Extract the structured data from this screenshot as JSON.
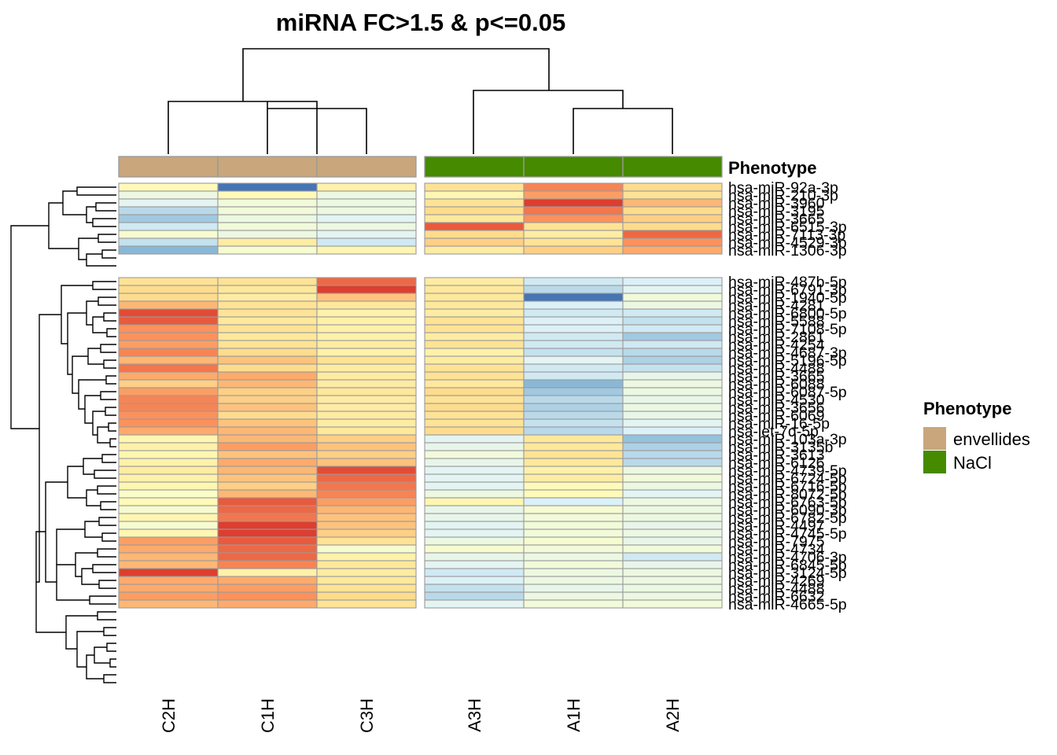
{
  "chart_data": {
    "type": "heatmap",
    "title": "miRNA FC>1.5 & p<=0.05",
    "columns": [
      "C2H",
      "C1H",
      "C3H",
      "A3H",
      "A1H",
      "A2H"
    ],
    "column_phenotype": [
      "envellides",
      "envellides",
      "envellides",
      "NaCl",
      "NaCl",
      "NaCl"
    ],
    "annotation_label": "Phenotype",
    "legend": {
      "title": "Phenotype",
      "items": [
        {
          "label": "envellides",
          "color": "#C9A67C"
        },
        {
          "label": "NaCl",
          "color": "#468A00"
        }
      ]
    },
    "row_labels": [
      "hsa-miR-92a-3p",
      "hsa-miR-210-3p",
      "hsa-miR-3960",
      "hsa-miR-3195",
      "hsa-miR-3665",
      "hsa-miR-6515-3p",
      "hsa-miR-7113-3p",
      "hsa-miR-4529-3p",
      "hsa-miR-1306-3p",
      "hsa-miR-487b-5p",
      "hsa-miR-6791-3p",
      "hsa-miR-1940-5p",
      "hsa-miR-4281",
      "hsa-miR-6800-5p",
      "hsa-miR-5588",
      "hsa-miR-7108-5p",
      "hsa-miR-2861",
      "hsa-miR-4254",
      "hsa-miR-4687-3p",
      "hsa-miR-5196-5p",
      "hsa-miR-4488",
      "hsa-miR-3665",
      "hsa-miR-6088",
      "hsa-miR-6087-5p",
      "hsa-miR-4530",
      "hsa-miR-3656",
      "hsa-miR-6069",
      "hsa-miR-16-5p",
      "hsa-let-7d-5p",
      "hsa-miR-103a-3p",
      "hsa-miR-3135b",
      "hsa-miR-3613",
      "hsa-miR-6126",
      "hsa-miR-4739-5p",
      "hsa-miR-6724-5p",
      "hsa-miR-6716-5p",
      "hsa-miR-8072-5p",
      "hsa-miR-6763-5p",
      "hsa-miR-6090-3p",
      "hsa-miR-6782-5p",
      "hsa-miR-4497",
      "hsa-miR-4745-5p",
      "hsa-miR-7975",
      "hsa-miR-4734",
      "hsa-miR-4706-3p",
      "hsa-miR-6845-5p",
      "hsa-miR-3124-5p",
      "hsa-miR-4269",
      "hsa-miR-4488",
      "hsa-miR-6632",
      "hsa-miR-4665-5p"
    ],
    "color_scale": {
      "low": "#4575B4",
      "mid": "#FFFFBF",
      "high": "#D73027",
      "range": [
        -2,
        2
      ],
      "stops": [
        "#4575B4",
        "#91BFDB",
        "#E0F3F8",
        "#FFFFBF",
        "#FEE090",
        "#FC8D59",
        "#D73027"
      ]
    },
    "values": [
      [
        0.1,
        -2.0,
        0.3,
        0.6,
        1.4,
        0.7
      ],
      [
        -0.4,
        0.1,
        -0.4,
        0.2,
        1.2,
        0.6
      ],
      [
        -0.6,
        -0.3,
        -0.4,
        0.6,
        1.9,
        1.0
      ],
      [
        -1.0,
        -0.3,
        -0.4,
        0.7,
        1.5,
        0.7
      ],
      [
        -1.2,
        -0.4,
        -0.6,
        0.5,
        1.3,
        0.8
      ],
      [
        -0.8,
        -0.3,
        -0.4,
        1.7,
        0.6,
        0.7
      ],
      [
        -0.2,
        -0.4,
        -0.6,
        0.7,
        0.4,
        1.6
      ],
      [
        -0.9,
        0.4,
        -0.8,
        0.8,
        0.6,
        1.3
      ],
      [
        -1.4,
        -0.2,
        0.2,
        0.4,
        0.8,
        1.1
      ],
      [
        0.6,
        0.6,
        1.6,
        0.4,
        -0.8,
        -0.7
      ],
      [
        0.7,
        0.5,
        1.9,
        0.5,
        -1.0,
        -0.6
      ],
      [
        0.7,
        0.4,
        0.9,
        0.5,
        -2.0,
        -0.3
      ],
      [
        1.0,
        0.6,
        0.5,
        0.5,
        -0.7,
        -0.4
      ],
      [
        1.8,
        0.6,
        0.3,
        0.4,
        -0.8,
        -0.8
      ],
      [
        1.7,
        0.5,
        0.3,
        0.6,
        -0.7,
        -0.9
      ],
      [
        1.3,
        0.6,
        0.3,
        0.6,
        -0.7,
        -0.8
      ],
      [
        1.3,
        0.5,
        0.3,
        0.4,
        -0.8,
        -1.2
      ],
      [
        1.2,
        0.6,
        0.4,
        0.6,
        -0.8,
        -0.8
      ],
      [
        1.4,
        0.7,
        0.3,
        0.3,
        -0.9,
        -1.0
      ],
      [
        1.0,
        0.9,
        0.6,
        0.4,
        -0.6,
        -1.1
      ],
      [
        1.5,
        0.7,
        0.4,
        0.6,
        -0.8,
        -0.9
      ],
      [
        1.1,
        1.1,
        0.4,
        0.6,
        -0.8,
        -0.5
      ],
      [
        0.8,
        1.0,
        0.4,
        0.5,
        -1.4,
        -0.4
      ],
      [
        1.2,
        0.8,
        0.5,
        0.7,
        -1.2,
        -0.4
      ],
      [
        1.4,
        0.8,
        0.4,
        0.6,
        -1.0,
        -0.5
      ],
      [
        1.4,
        0.9,
        0.4,
        0.7,
        -1.1,
        -0.4
      ],
      [
        1.3,
        0.7,
        0.4,
        0.6,
        -1.0,
        -0.5
      ],
      [
        1.3,
        0.9,
        0.4,
        0.6,
        -0.9,
        -0.6
      ],
      [
        1.1,
        1.0,
        0.5,
        0.7,
        -1.0,
        -0.7
      ],
      [
        0.2,
        1.0,
        0.8,
        -0.6,
        0.5,
        -1.3
      ],
      [
        0.3,
        1.2,
        0.9,
        -0.5,
        0.5,
        -1.1
      ],
      [
        0.2,
        0.9,
        0.8,
        -0.3,
        0.6,
        -1.0
      ],
      [
        0.3,
        1.1,
        0.9,
        -0.5,
        0.5,
        -1.0
      ],
      [
        0.4,
        1.0,
        1.8,
        -0.6,
        0.3,
        -0.4
      ],
      [
        0.3,
        0.9,
        1.6,
        -0.6,
        0.4,
        -0.3
      ],
      [
        0.2,
        0.8,
        1.5,
        -0.6,
        0.1,
        -0.4
      ],
      [
        -0.1,
        1.0,
        1.4,
        -0.4,
        0.1,
        -0.6
      ],
      [
        0.1,
        1.7,
        1.2,
        0.2,
        -0.7,
        -0.4
      ],
      [
        -0.2,
        1.6,
        1.0,
        -0.5,
        -0.2,
        -0.4
      ],
      [
        0.2,
        1.5,
        0.9,
        -0.5,
        -0.3,
        -0.4
      ],
      [
        -0.2,
        1.9,
        0.9,
        -0.6,
        -0.3,
        -0.5
      ],
      [
        0.2,
        1.9,
        0.8,
        -0.6,
        -0.3,
        -0.4
      ],
      [
        1.2,
        1.7,
        0.6,
        -0.4,
        -0.2,
        -0.5
      ],
      [
        1.1,
        1.6,
        -0.2,
        -0.2,
        -0.3,
        -0.3
      ],
      [
        1.0,
        1.6,
        0.3,
        -0.5,
        -0.4,
        -0.8
      ],
      [
        1.0,
        1.4,
        0.5,
        -0.6,
        -0.3,
        -0.5
      ],
      [
        1.9,
        0.3,
        0.4,
        -0.8,
        -0.4,
        -0.4
      ],
      [
        1.1,
        1.1,
        0.5,
        -0.7,
        -0.4,
        -0.4
      ],
      [
        1.1,
        1.2,
        0.6,
        -0.9,
        -0.5,
        -0.4
      ],
      [
        1.2,
        1.3,
        0.7,
        -1.0,
        -0.4,
        -0.4
      ],
      [
        1.0,
        1.1,
        0.6,
        -0.6,
        -0.3,
        -0.3
      ]
    ]
  }
}
